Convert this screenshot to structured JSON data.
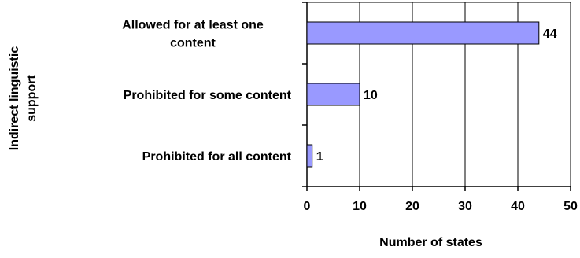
{
  "chart_data": {
    "type": "bar",
    "orientation": "horizontal",
    "categories": [
      [
        "Allowed for at least one",
        "content"
      ],
      [
        "Prohibited for some content"
      ],
      [
        "Prohibited for all content"
      ]
    ],
    "values": [
      44,
      10,
      1
    ],
    "data_labels": [
      "44",
      "10",
      "1"
    ],
    "xlabel": "Number of states",
    "ylabel": [
      "Indirect linguistic",
      "support"
    ],
    "xlim": [
      0,
      50
    ],
    "xticks": [
      0,
      10,
      20,
      30,
      40,
      50
    ],
    "xtick_labels": [
      "0",
      "10",
      "20",
      "30",
      "40",
      "50"
    ],
    "grid": "vertical",
    "legend": "none",
    "colors": {
      "bar_fill": "#9999FF",
      "bar_stroke": "#000000",
      "grid": "#000000"
    }
  }
}
